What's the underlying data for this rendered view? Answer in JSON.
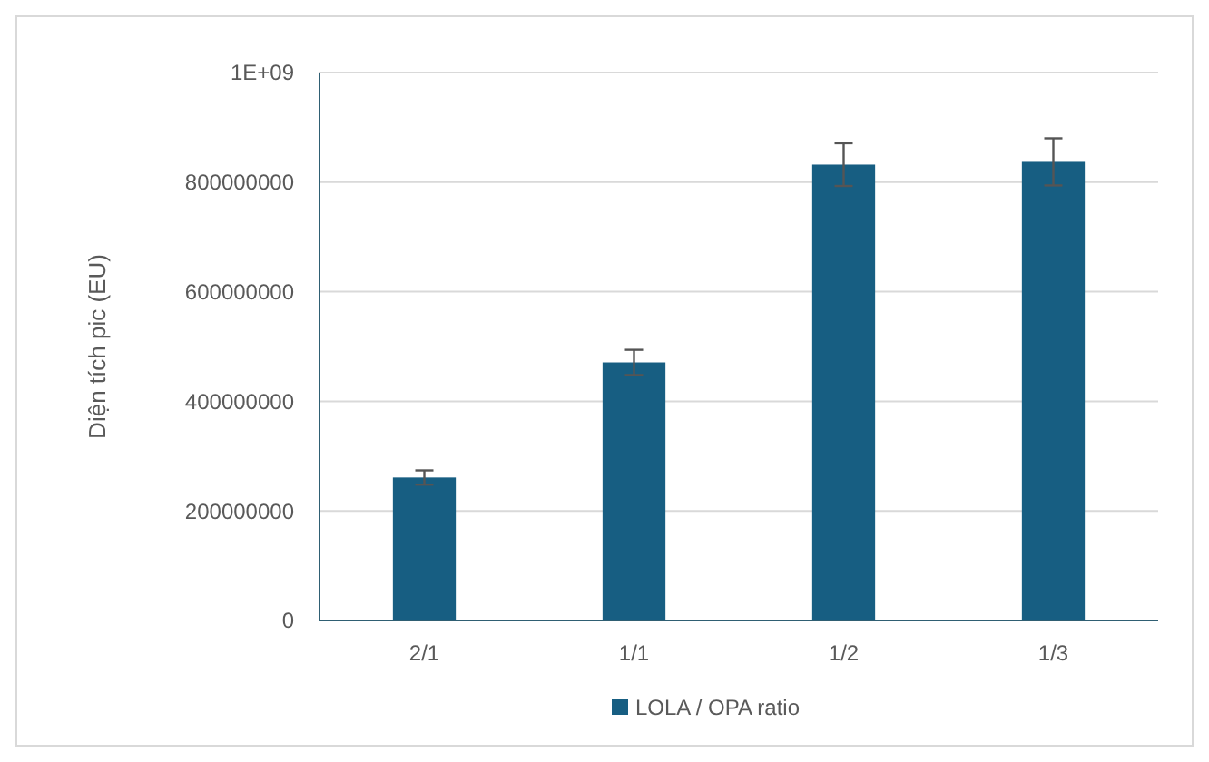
{
  "chart_data": {
    "type": "bar",
    "ylabel": "Diện tích pic (EU)",
    "categories": [
      "2/1",
      "1/1",
      "1/2",
      "1/3"
    ],
    "series": [
      {
        "name": "LOLA / OPA ratio",
        "color": "#175e82",
        "values": [
          261000000,
          471000000,
          832000000,
          837000000
        ],
        "errors": [
          13000000,
          23000000,
          39000000,
          43000000
        ]
      }
    ],
    "ylim": [
      0,
      1000000000
    ],
    "yticks": [
      0,
      200000000,
      400000000,
      600000000,
      800000000,
      {
        "value": 1000000000,
        "label": "1E+09"
      }
    ],
    "grid": "y",
    "legend": "bottom"
  }
}
